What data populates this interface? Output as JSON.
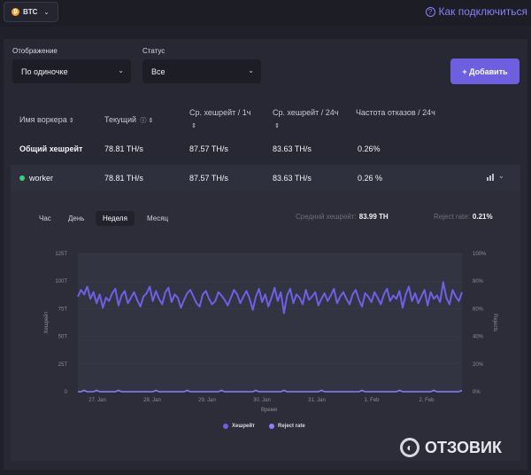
{
  "topbar": {
    "coin": "BTC",
    "help_link": "Как подключиться"
  },
  "filters": {
    "display_label": "Отображение",
    "display_value": "По одиночке",
    "status_label": "Статус",
    "status_value": "Все",
    "add_button": "+ Добавить"
  },
  "table": {
    "headers": {
      "worker": "Имя воркера",
      "current": "Текущий",
      "avg1h": "Ср. хешрейт / 1ч",
      "avg24h": "Ср. хешрейт / 24ч",
      "reject": "Частота отказов / 24ч"
    },
    "total_row": {
      "name": "Общий хешрейт",
      "current": "78.81 TH/s",
      "avg1h": "87.57 TH/s",
      "avg24h": "83.63 TH/s",
      "reject": "0.26%"
    },
    "worker_row": {
      "name": "worker",
      "current": "78.81 TH/s",
      "avg1h": "87.57 TH/s",
      "avg24h": "83.63 TH/s",
      "reject": "0.26 %"
    }
  },
  "detail": {
    "tabs": [
      "Час",
      "День",
      "Неделя",
      "Месяц"
    ],
    "active_tab": "Неделя",
    "avg_label": "Средний хешрейт:",
    "avg_value": "83.99 TH",
    "reject_label": "Reject rate:",
    "reject_value": "0.21%"
  },
  "colors": {
    "accent": "#6d5fe0",
    "hashrate_series": "#6f5fe6",
    "reject_series": "#8a7fff",
    "online": "#3dd07a"
  },
  "watermark": "ОТЗОВИК",
  "chart_data": {
    "type": "line",
    "xlabel": "Время",
    "ylabel_left": "Хешрейт",
    "ylabel_right": "Rejects",
    "x_ticks": [
      "27. Jan",
      "28. Jan",
      "29. Jan",
      "30. Jan",
      "31. Jan",
      "1. Feb",
      "2. Feb"
    ],
    "y_left_ticks": [
      "0",
      "25T",
      "50T",
      "75T",
      "100T",
      "125T"
    ],
    "y_right_ticks": [
      "0%",
      "20%",
      "40%",
      "60%",
      "80%",
      "100%"
    ],
    "y_left_range": [
      0,
      125
    ],
    "y_right_range": [
      0,
      100
    ],
    "series": [
      {
        "name": "Хешрейт",
        "unit": "TH",
        "values": [
          86,
          92,
          88,
          95,
          84,
          90,
          80,
          88,
          76,
          85,
          82,
          89,
          93,
          78,
          87,
          91,
          80,
          85,
          90,
          83,
          77,
          86,
          89,
          95,
          82,
          91,
          84,
          79,
          90,
          94,
          81,
          88,
          85,
          76,
          83,
          89,
          92,
          86,
          80,
          77,
          88,
          91,
          84,
          79,
          82,
          90,
          87,
          83,
          78,
          85,
          92,
          88,
          80,
          86,
          91,
          84,
          74,
          86,
          93,
          81,
          88,
          77,
          85,
          94,
          82,
          90,
          71,
          87,
          93,
          80,
          88,
          85,
          79,
          92,
          83,
          86,
          90,
          78,
          84,
          89,
          82,
          87,
          93,
          80,
          86,
          90,
          84,
          79,
          88,
          92,
          83,
          77,
          89,
          86,
          81,
          90,
          85,
          79,
          88,
          93,
          82,
          87,
          84,
          91,
          76,
          88,
          95,
          82,
          89,
          80,
          86,
          92,
          78,
          90,
          84,
          87,
          81,
          99,
          85,
          79,
          92,
          86,
          82,
          90
        ]
      },
      {
        "name": "Reject rate",
        "unit": "%",
        "values": [
          0,
          0,
          1,
          0,
          0,
          0,
          1,
          0,
          0,
          0,
          0,
          0,
          0,
          1,
          0,
          0,
          0,
          0,
          0,
          0,
          0,
          0,
          0,
          0,
          0,
          1,
          0,
          0,
          0,
          0,
          0,
          0,
          0,
          0,
          0,
          1,
          0,
          0,
          0,
          0,
          0,
          0,
          0,
          0,
          0,
          0,
          1,
          0,
          0,
          0,
          0,
          0,
          0,
          0,
          0,
          0,
          0,
          1,
          0,
          0,
          0,
          0,
          0,
          0,
          0,
          0,
          1,
          0,
          0,
          0,
          0,
          0,
          0,
          0,
          0,
          0,
          0,
          0,
          1,
          0,
          0,
          0,
          0,
          0,
          0,
          0,
          0,
          0,
          0,
          0,
          0,
          1,
          0,
          0,
          0,
          0,
          0,
          0,
          0,
          0,
          0,
          0,
          0,
          1,
          0,
          0,
          0,
          0,
          0,
          0,
          0,
          0,
          0,
          0,
          1,
          0,
          0,
          0,
          0,
          0,
          0,
          0,
          0,
          1
        ]
      }
    ]
  }
}
